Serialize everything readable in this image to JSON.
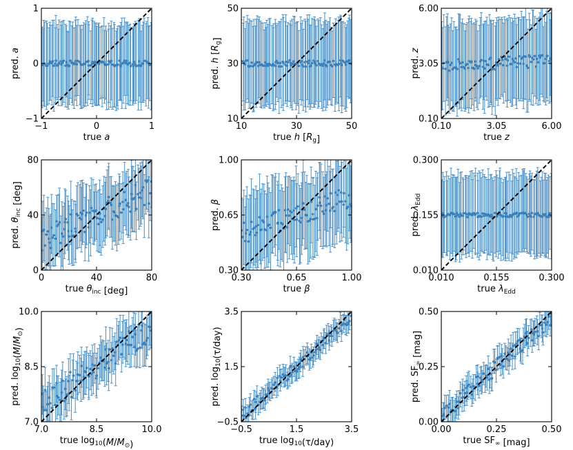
{
  "style": {
    "marker_color": "#3b7fb8",
    "errorbar_color": "#4a90c8",
    "line_color": "#000000"
  },
  "chart_data": [
    {
      "type": "scatter",
      "panel": "a",
      "ylabel": [
        "pred. ",
        "a"
      ],
      "xlabel": [
        "true ",
        "a"
      ],
      "xlim": [
        -1,
        1
      ],
      "ylim": [
        -1,
        1
      ],
      "xticks": [
        "−1",
        "0",
        "1"
      ],
      "yticks": [
        "−1",
        "0",
        "1"
      ],
      "xtick_values": [
        -1,
        0,
        1
      ],
      "ytick_values": [
        -1,
        0,
        1
      ],
      "ideal_line": [
        [
          -1,
          -1
        ],
        [
          1,
          1
        ]
      ],
      "n_points": 100,
      "truth_range": [
        -1,
        1
      ],
      "pred_center": 0.0,
      "pred_center_scatter": 0.05,
      "error_lower": 0.72,
      "error_upper": 0.72,
      "trend_slope": 0.0
    },
    {
      "type": "scatter",
      "panel": "h",
      "ylabel": [
        "pred. ",
        "h",
        " [",
        "R",
        "g",
        "]"
      ],
      "xlabel": [
        "true ",
        "h",
        " [",
        "R",
        "g",
        "]"
      ],
      "xlim": [
        10,
        50
      ],
      "ylim": [
        10,
        50
      ],
      "xticks": [
        "10",
        "30",
        "50"
      ],
      "yticks": [
        "10",
        "30",
        "50"
      ],
      "xtick_values": [
        10,
        30,
        50
      ],
      "ytick_values": [
        10,
        30,
        50
      ],
      "ideal_line": [
        [
          10,
          10
        ],
        [
          50,
          50
        ]
      ],
      "n_points": 100,
      "truth_range": [
        10,
        50
      ],
      "pred_center": 30,
      "pred_center_scatter": 1.2,
      "error_lower": 15,
      "error_upper": 15,
      "trend_slope": 0.0
    },
    {
      "type": "scatter",
      "panel": "z",
      "ylabel": [
        "pred. ",
        "z"
      ],
      "xlabel": [
        "true ",
        "z"
      ],
      "xlim": [
        0.1,
        6.0
      ],
      "ylim": [
        0.1,
        6.0
      ],
      "xticks": [
        "0.10",
        "3.05",
        "6.00"
      ],
      "yticks": [
        "0.10",
        "3.05",
        "6.00"
      ],
      "xtick_values": [
        0.1,
        3.05,
        6.0
      ],
      "ytick_values": [
        0.1,
        3.05,
        6.0
      ],
      "ideal_line": [
        [
          0.1,
          0.1
        ],
        [
          6.0,
          6.0
        ]
      ],
      "n_points": 100,
      "truth_range": [
        0.1,
        6.0
      ],
      "pred_center": 3.05,
      "pred_center_scatter": 0.35,
      "error_lower": 2.2,
      "error_upper": 2.3,
      "trend_slope": 0.05
    },
    {
      "type": "scatter",
      "panel": "inclination",
      "ylabel": [
        "pred. ",
        "θ",
        "inc",
        " [deg]"
      ],
      "xlabel": [
        "true ",
        "θ",
        "inc",
        " [deg]"
      ],
      "xlim": [
        0,
        80
      ],
      "ylim": [
        0,
        80
      ],
      "xticks": [
        "0",
        "40",
        "80"
      ],
      "yticks": [
        "0",
        "40",
        "80"
      ],
      "xtick_values": [
        0,
        40,
        80
      ],
      "ytick_values": [
        0,
        40,
        80
      ],
      "ideal_line": [
        [
          0,
          0
        ],
        [
          80,
          80
        ]
      ],
      "n_points": 100,
      "truth_range": [
        0,
        80
      ],
      "pred_center": 40,
      "pred_center_scatter": 9,
      "error_lower": 22,
      "error_upper": 22,
      "trend_slope": 0.45
    },
    {
      "type": "scatter",
      "panel": "beta",
      "ylabel": [
        "pred. ",
        "β"
      ],
      "xlabel": [
        "true ",
        "β"
      ],
      "xlim": [
        0.3,
        1.0
      ],
      "ylim": [
        0.3,
        1.0
      ],
      "xticks": [
        "0.30",
        "0.65",
        "1.00"
      ],
      "yticks": [
        "0.30",
        "0.65",
        "1.00"
      ],
      "xtick_values": [
        0.3,
        0.65,
        1.0
      ],
      "ytick_values": [
        0.3,
        0.65,
        1.0
      ],
      "ideal_line": [
        [
          0.3,
          0.3
        ],
        [
          1.0,
          1.0
        ]
      ],
      "n_points": 100,
      "truth_range": [
        0.3,
        1.0
      ],
      "pred_center": 0.65,
      "pred_center_scatter": 0.07,
      "error_lower": 0.24,
      "error_upper": 0.24,
      "trend_slope": 0.35
    },
    {
      "type": "scatter",
      "panel": "eddington",
      "ylabel": [
        "pred. ",
        "λ",
        "Edd"
      ],
      "xlabel": [
        "true ",
        "λ",
        "Edd"
      ],
      "xlim": [
        0.01,
        0.3
      ],
      "ylim": [
        0.01,
        0.3
      ],
      "xticks": [
        "0.010",
        "0.155",
        "0.300"
      ],
      "yticks": [
        "0.010",
        "0.155",
        "0.300"
      ],
      "xtick_values": [
        0.01,
        0.155,
        0.3
      ],
      "ytick_values": [
        0.01,
        0.155,
        0.3
      ],
      "ideal_line": [
        [
          0.01,
          0.01
        ],
        [
          0.3,
          0.3
        ]
      ],
      "n_points": 100,
      "truth_range": [
        0.01,
        0.3
      ],
      "pred_center": 0.155,
      "pred_center_scatter": 0.006,
      "error_lower": 0.105,
      "error_upper": 0.105,
      "trend_slope": 0.0
    },
    {
      "type": "scatter",
      "panel": "mass",
      "ylabel": [
        "pred. log",
        "10",
        "(",
        "M",
        "/",
        "M",
        "⊙",
        ")"
      ],
      "xlabel": [
        "true log",
        "10",
        "(",
        "M",
        "/",
        "M",
        "⊙",
        ")"
      ],
      "xlim": [
        7.0,
        10.0
      ],
      "ylim": [
        7.0,
        10.0
      ],
      "xticks": [
        "7.0",
        "8.5",
        "10.0"
      ],
      "yticks": [
        "7.0",
        "8.5",
        "10.0"
      ],
      "xtick_values": [
        7.0,
        8.5,
        10.0
      ],
      "ytick_values": [
        7.0,
        8.5,
        10.0
      ],
      "ideal_line": [
        [
          7.0,
          7.0
        ],
        [
          10.0,
          10.0
        ]
      ],
      "n_points": 100,
      "truth_range": [
        7.0,
        10.0
      ],
      "pred_center": 8.5,
      "pred_center_scatter": 0.35,
      "error_lower": 0.55,
      "error_upper": 0.55,
      "trend_slope": 0.7
    },
    {
      "type": "scatter",
      "panel": "tau",
      "ylabel": [
        "pred. log",
        "10",
        "(τ/day)"
      ],
      "xlabel": [
        "true log",
        "10",
        "(τ/day)"
      ],
      "xlim": [
        -0.5,
        3.5
      ],
      "ylim": [
        -0.5,
        3.5
      ],
      "xticks": [
        "−0.5",
        "1.5",
        "3.5"
      ],
      "yticks": [
        "−0.5",
        "1.5",
        "3.5"
      ],
      "xtick_values": [
        -0.5,
        1.5,
        3.5
      ],
      "ytick_values": [
        -0.5,
        1.5,
        3.5
      ],
      "ideal_line": [
        [
          -0.5,
          -0.5
        ],
        [
          3.5,
          3.5
        ]
      ],
      "n_points": 100,
      "truth_range": [
        -0.5,
        3.5
      ],
      "pred_center": 1.5,
      "pred_center_scatter": 0.22,
      "error_lower": 0.35,
      "error_upper": 0.35,
      "trend_slope": 0.9
    },
    {
      "type": "scatter",
      "panel": "sf",
      "ylabel": [
        "pred. SF",
        "∞",
        " [mag]"
      ],
      "xlabel": [
        "true SF",
        "∞",
        " [mag]"
      ],
      "xlim": [
        0.0,
        0.5
      ],
      "ylim": [
        0.0,
        0.5
      ],
      "xticks": [
        "0.00",
        "0.25",
        "0.50"
      ],
      "yticks": [
        "0.00",
        "0.25",
        "0.50"
      ],
      "xtick_values": [
        0.0,
        0.25,
        0.5
      ],
      "ytick_values": [
        0.0,
        0.25,
        0.5
      ],
      "ideal_line": [
        [
          0.0,
          0.0
        ],
        [
          0.5,
          0.5
        ]
      ],
      "n_points": 100,
      "truth_range": [
        0.0,
        0.5
      ],
      "pred_center": 0.25,
      "pred_center_scatter": 0.035,
      "error_lower": 0.055,
      "error_upper": 0.055,
      "trend_slope": 0.9
    }
  ]
}
